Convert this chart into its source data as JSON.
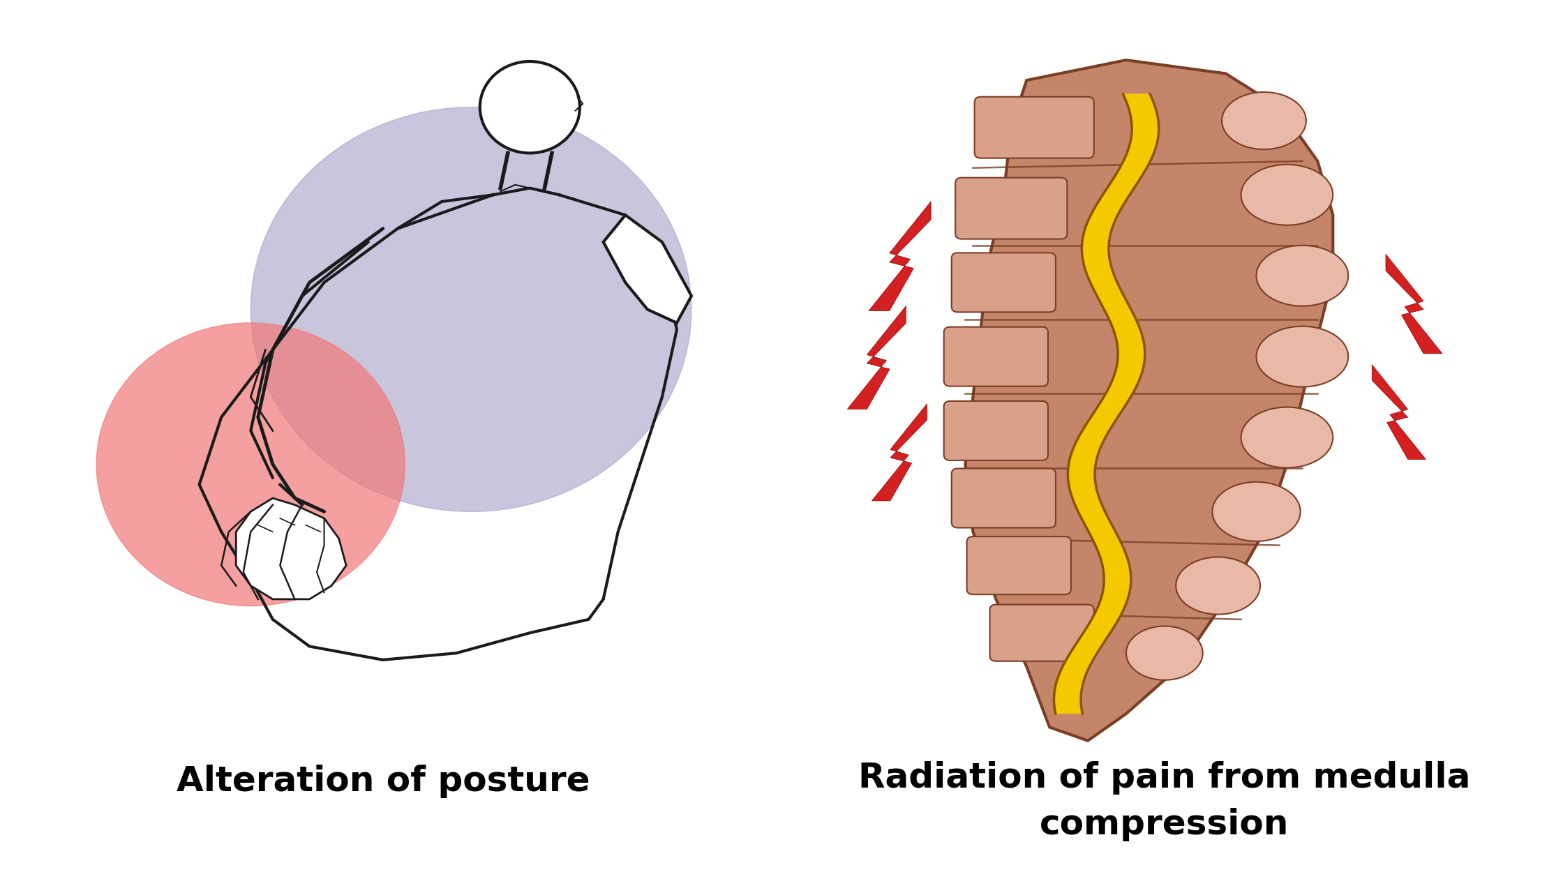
{
  "background_color": "#ffffff",
  "title1": "Alteration of posture",
  "title2": "Radiation of pain from medulla\ncompression",
  "title_fontsize": 36,
  "title_fontweight": "bold",
  "colors": {
    "purple_circle": "#9B97C2",
    "red_circle": "#F07878",
    "body_outline": "#1a1a1a",
    "spine_main": "#C4856A",
    "spine_left_vert": "#D9A08A",
    "spine_right_vert": "#E8B8A8",
    "spine_dark_border": "#7A3E25",
    "cord_yellow": "#F5C800",
    "cord_dark": "#8B5500",
    "lightning_red": "#D42020",
    "divider": "#A06045"
  }
}
